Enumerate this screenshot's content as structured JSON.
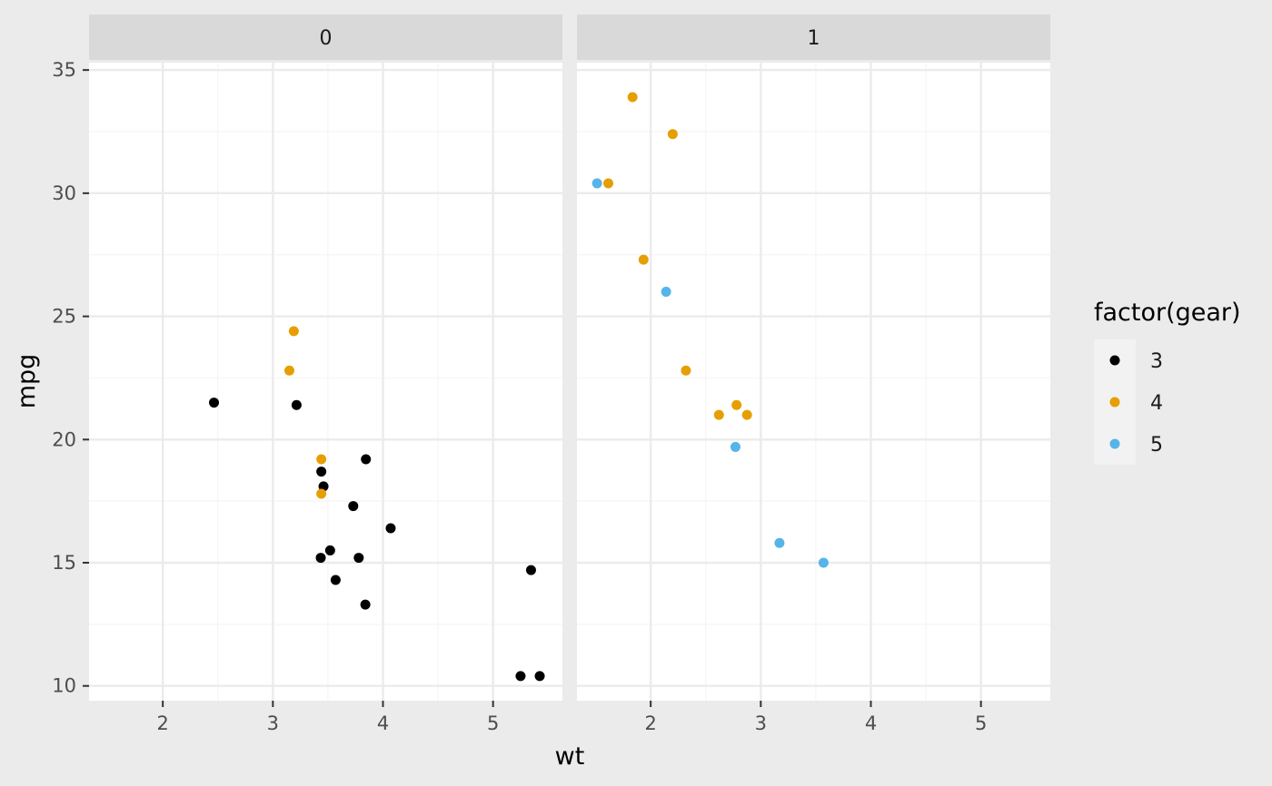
{
  "chart_data": {
    "type": "scatter",
    "facet_variable_levels": [
      "0",
      "1"
    ],
    "xlabel": "wt",
    "ylabel": "mpg",
    "xlim": [
      1.33,
      5.63
    ],
    "ylim": [
      9.4,
      35.3
    ],
    "x_ticks": [
      2,
      3,
      4,
      5
    ],
    "y_ticks": [
      10,
      15,
      20,
      25,
      30,
      35
    ],
    "grid": true,
    "legend": {
      "title": "factor(gear)",
      "position": "right",
      "entries": [
        {
          "label": "3",
          "color": "#000000"
        },
        {
          "label": "4",
          "color": "#E69F00"
        },
        {
          "label": "5",
          "color": "#56B4E9"
        }
      ]
    },
    "panels": [
      {
        "facet": "0",
        "points": [
          {
            "x": 2.465,
            "y": 21.5,
            "gear": "3"
          },
          {
            "x": 3.215,
            "y": 21.4,
            "gear": "3"
          },
          {
            "x": 3.44,
            "y": 18.7,
            "gear": "3"
          },
          {
            "x": 3.46,
            "y": 18.1,
            "gear": "3"
          },
          {
            "x": 3.57,
            "y": 14.3,
            "gear": "3"
          },
          {
            "x": 4.07,
            "y": 16.4,
            "gear": "3"
          },
          {
            "x": 3.73,
            "y": 17.3,
            "gear": "3"
          },
          {
            "x": 3.78,
            "y": 15.2,
            "gear": "3"
          },
          {
            "x": 5.25,
            "y": 10.4,
            "gear": "3"
          },
          {
            "x": 5.424,
            "y": 10.4,
            "gear": "3"
          },
          {
            "x": 5.345,
            "y": 14.7,
            "gear": "3"
          },
          {
            "x": 3.52,
            "y": 15.5,
            "gear": "3"
          },
          {
            "x": 3.435,
            "y": 15.2,
            "gear": "3"
          },
          {
            "x": 3.84,
            "y": 13.3,
            "gear": "3"
          },
          {
            "x": 3.845,
            "y": 19.2,
            "gear": "3"
          },
          {
            "x": 3.19,
            "y": 24.4,
            "gear": "4"
          },
          {
            "x": 3.15,
            "y": 22.8,
            "gear": "4"
          },
          {
            "x": 3.44,
            "y": 19.2,
            "gear": "4"
          },
          {
            "x": 3.44,
            "y": 17.8,
            "gear": "4"
          }
        ]
      },
      {
        "facet": "1",
        "points": [
          {
            "x": 2.62,
            "y": 21.0,
            "gear": "4"
          },
          {
            "x": 2.875,
            "y": 21.0,
            "gear": "4"
          },
          {
            "x": 2.32,
            "y": 22.8,
            "gear": "4"
          },
          {
            "x": 2.2,
            "y": 32.4,
            "gear": "4"
          },
          {
            "x": 1.615,
            "y": 30.4,
            "gear": "4"
          },
          {
            "x": 1.835,
            "y": 33.9,
            "gear": "4"
          },
          {
            "x": 1.935,
            "y": 27.3,
            "gear": "4"
          },
          {
            "x": 2.78,
            "y": 21.4,
            "gear": "4"
          },
          {
            "x": 2.14,
            "y": 26.0,
            "gear": "5"
          },
          {
            "x": 1.513,
            "y": 30.4,
            "gear": "5"
          },
          {
            "x": 3.17,
            "y": 15.8,
            "gear": "5"
          },
          {
            "x": 2.77,
            "y": 19.7,
            "gear": "5"
          },
          {
            "x": 3.57,
            "y": 15.0,
            "gear": "5"
          }
        ]
      }
    ]
  },
  "colors": {
    "background": "#EBEBEB",
    "panel": "#FFFFFF",
    "strip": "#D9D9D9",
    "grid": "#EBEBEB"
  }
}
